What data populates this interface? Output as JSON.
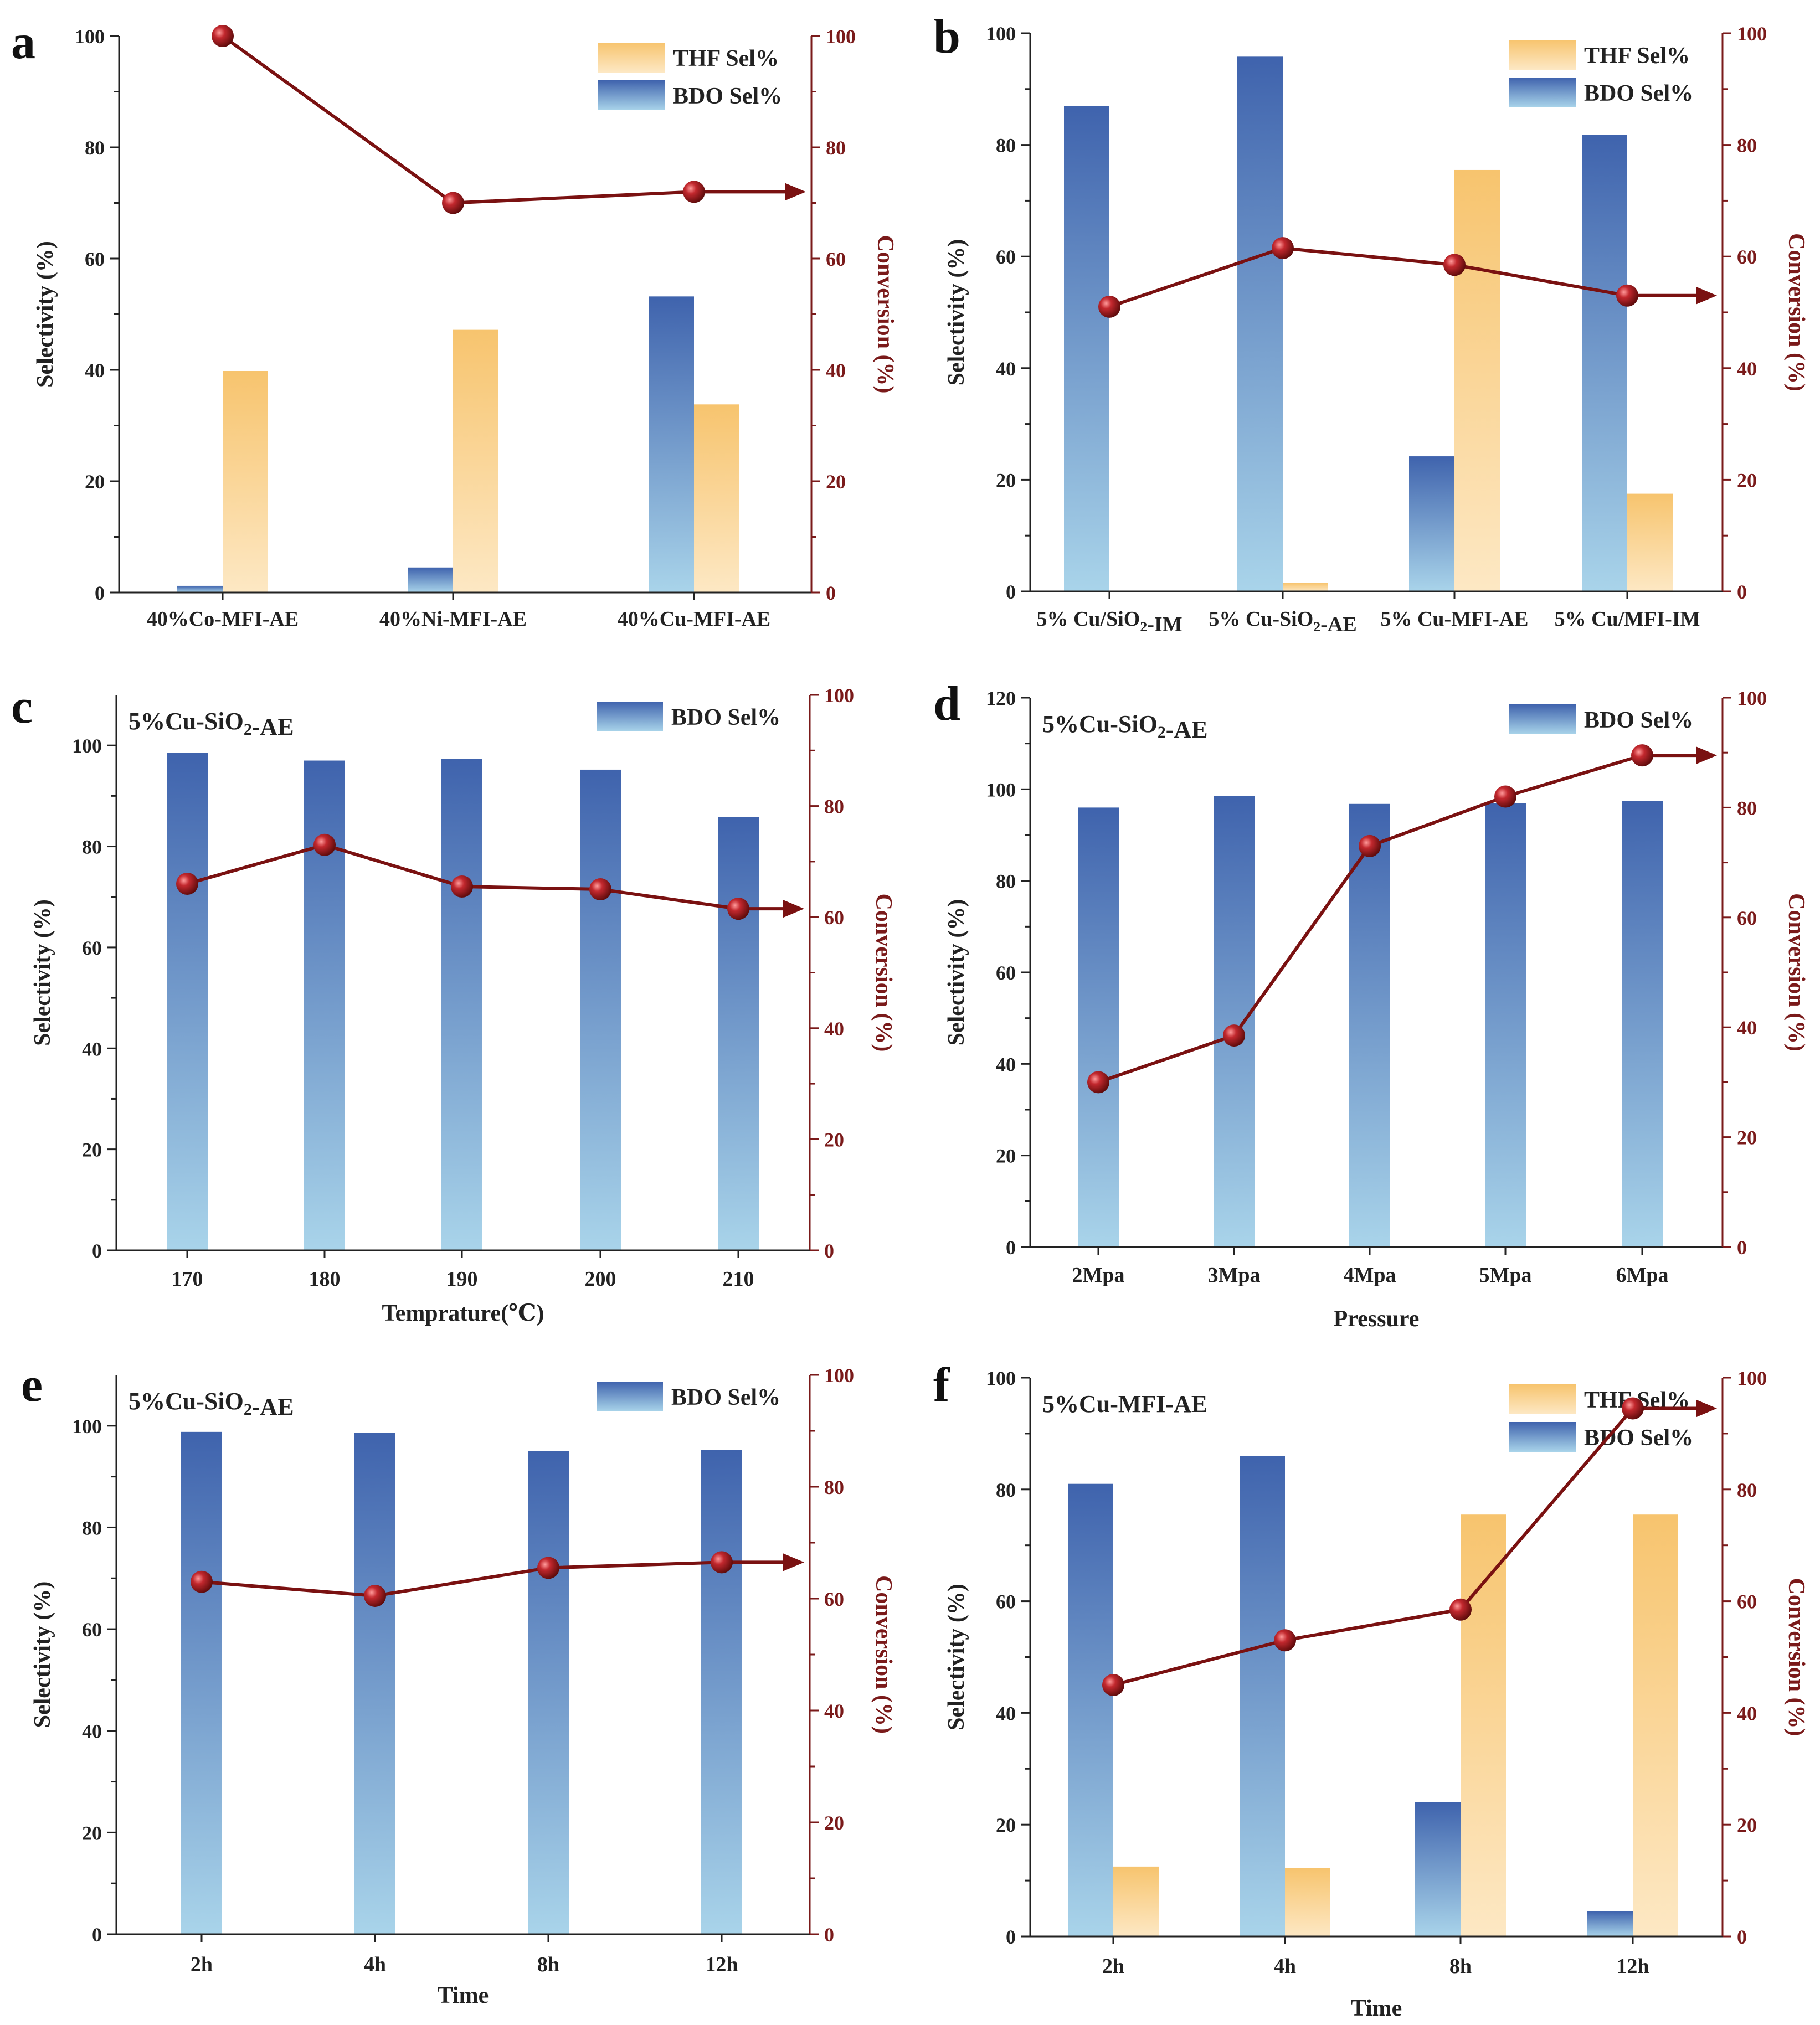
{
  "colors": {
    "bdo_top": "#3f63ad",
    "bdo_bottom": "#a9d4ea",
    "thf_top": "#f7c46e",
    "thf_bottom": "#fde8c4",
    "conversion": "#7a1111",
    "axis": "#222222",
    "axis_right": "#7a1a1a"
  },
  "icons": {
    "marker": "sphere-marker-icon",
    "arrow": "arrow-right-icon"
  },
  "chart_data": [
    {
      "panel": "a",
      "type": "bar",
      "inset_label": "",
      "categories": [
        "40%Co-MFI-AE",
        "40%Ni-MFI-AE",
        "40%Cu-MFI-AE"
      ],
      "series": [
        {
          "name": "BDO Sel%",
          "values": [
            1.2,
            4.5,
            53.2
          ]
        },
        {
          "name": "THF Sel%",
          "values": [
            39.8,
            47.2,
            33.8
          ]
        }
      ],
      "conversion": {
        "name": "Conversion (%)",
        "values": [
          100,
          70,
          72
        ]
      },
      "legend": [
        "THF Sel%",
        "BDO Sel%"
      ],
      "xlabel": "",
      "ylabel": "Selectivity (%)",
      "y2label": "Conversion (%)",
      "ylim": [
        0,
        100
      ],
      "y2lim": [
        0,
        100
      ],
      "yticks": [
        0,
        20,
        40,
        60,
        80,
        100
      ],
      "y2ticks": [
        0,
        20,
        40,
        60,
        80,
        100
      ]
    },
    {
      "panel": "b",
      "type": "bar",
      "inset_label": "",
      "categories": [
        "5% Cu/SiO2-IM",
        "5% Cu-SiO2-AE",
        "5% Cu-MFI-AE",
        "5% Cu/MFI-IM"
      ],
      "series": [
        {
          "name": "BDO Sel%",
          "values": [
            87,
            95.8,
            24.2,
            81.8
          ]
        },
        {
          "name": "THF Sel%",
          "values": [
            0,
            1.5,
            75.5,
            17.5
          ]
        }
      ],
      "conversion": {
        "name": "Conversion (%)",
        "values": [
          51,
          61.5,
          58.5,
          53
        ]
      },
      "legend": [
        "THF Sel%",
        "BDO Sel%"
      ],
      "xlabel": "",
      "ylabel": "Selectivity (%)",
      "y2label": "Conversion (%)",
      "ylim": [
        0,
        100
      ],
      "y2lim": [
        0,
        100
      ],
      "yticks": [
        0,
        20,
        40,
        60,
        80,
        100
      ],
      "y2ticks": [
        0,
        20,
        40,
        60,
        80,
        100
      ]
    },
    {
      "panel": "c",
      "type": "bar",
      "inset_label": "5%Cu-SiO2-AE",
      "categories": [
        "170",
        "180",
        "190",
        "200",
        "210"
      ],
      "series": [
        {
          "name": "BDO Sel%",
          "values": [
            98.5,
            97,
            97.3,
            95.2,
            85.8
          ]
        }
      ],
      "conversion": {
        "name": "Conversion (%)",
        "values": [
          66,
          73,
          65.5,
          65,
          61.5
        ]
      },
      "legend": [
        "BDO Sel%"
      ],
      "xlabel": "Temprature(℃)",
      "ylabel": "Selectivity (%)",
      "y2label": "Conversion (%)",
      "ylim": [
        0,
        110
      ],
      "y2lim": [
        0,
        100
      ],
      "yticks": [
        0,
        20,
        40,
        60,
        80,
        100
      ],
      "y2ticks": [
        0,
        20,
        40,
        60,
        80,
        100
      ]
    },
    {
      "panel": "d",
      "type": "bar",
      "inset_label": "5%Cu-SiO2-AE",
      "categories": [
        "2Mpa",
        "3Mpa",
        "4Mpa",
        "5Mpa",
        "6Mpa"
      ],
      "series": [
        {
          "name": "BDO Sel%",
          "values": [
            96,
            98.5,
            96.8,
            97,
            97.5
          ]
        }
      ],
      "conversion": {
        "name": "Conversion (%)",
        "values": [
          30,
          38.5,
          73,
          82,
          89.5
        ]
      },
      "legend": [
        "BDO Sel%"
      ],
      "xlabel": "Pressure",
      "ylabel": "Selectivity (%)",
      "y2label": "Conversion (%)",
      "ylim": [
        0,
        120
      ],
      "y2lim": [
        0,
        100
      ],
      "yticks": [
        0,
        20,
        40,
        60,
        80,
        100,
        120
      ],
      "y2ticks": [
        0,
        20,
        40,
        60,
        80,
        100
      ]
    },
    {
      "panel": "e",
      "type": "bar",
      "inset_label": "5%Cu-SiO2-AE",
      "categories": [
        "2h",
        "4h",
        "8h",
        "12h"
      ],
      "series": [
        {
          "name": "BDO Sel%",
          "values": [
            98.8,
            98.6,
            95,
            95.2
          ]
        }
      ],
      "conversion": {
        "name": "Conversion (%)",
        "values": [
          63,
          60.5,
          65.5,
          66.5
        ]
      },
      "legend": [
        "BDO Sel%"
      ],
      "xlabel": "Time",
      "ylabel": "Selectivity (%)",
      "y2label": "Conversion (%)",
      "ylim": [
        0,
        110
      ],
      "y2lim": [
        0,
        100
      ],
      "yticks": [
        0,
        20,
        40,
        60,
        80,
        100
      ],
      "y2ticks": [
        0,
        20,
        40,
        60,
        80,
        100
      ]
    },
    {
      "panel": "f",
      "type": "bar",
      "inset_label": "5%Cu-MFI-AE",
      "categories": [
        "2h",
        "4h",
        "8h",
        "12h"
      ],
      "series": [
        {
          "name": "BDO Sel%",
          "values": [
            81,
            86,
            24,
            4.5
          ]
        },
        {
          "name": "THF Sel%",
          "values": [
            12.5,
            12.2,
            75.5,
            75.5
          ]
        }
      ],
      "conversion": {
        "name": "Conversion (%)",
        "values": [
          45,
          53,
          58.5,
          94.5
        ]
      },
      "legend": [
        "THF Sel%",
        "BDO Sel%"
      ],
      "xlabel": "Time",
      "ylabel": "Selectivity (%)",
      "y2label": "Conversion (%)",
      "ylim": [
        0,
        100
      ],
      "y2lim": [
        0,
        100
      ],
      "yticks": [
        0,
        20,
        40,
        60,
        80,
        100
      ],
      "y2ticks": [
        0,
        20,
        40,
        60,
        80,
        100
      ]
    }
  ]
}
